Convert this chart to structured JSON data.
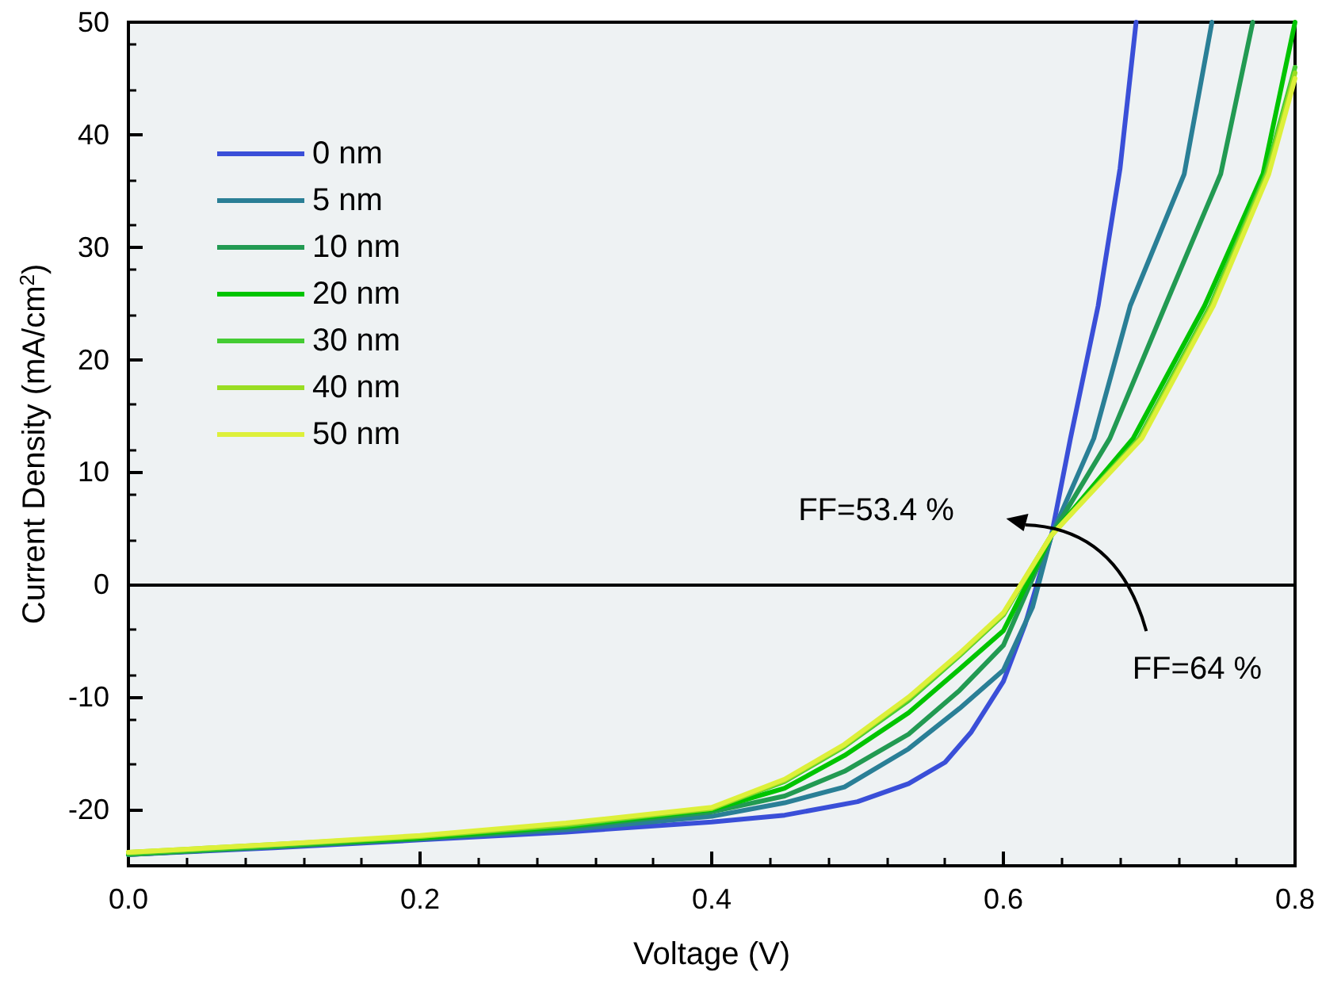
{
  "chart_data": {
    "type": "line",
    "xlabel": "Voltage (V)",
    "ylabel": "Current Density (mA/cm$^{2}$)",
    "xlim": [
      0,
      0.8
    ],
    "ylim": [
      -25,
      50
    ],
    "xticks": [
      {
        "value": 0,
        "label": "0.0"
      },
      {
        "value": 0.2,
        "label": "0.2"
      },
      {
        "value": 0.4,
        "label": "0.4"
      },
      {
        "value": 0.6,
        "label": "0.6"
      },
      {
        "value": 0.8,
        "label": "0.8"
      }
    ],
    "yticks": [
      -20,
      -10,
      0,
      10,
      20,
      30,
      40,
      50
    ],
    "grid": false,
    "legend": "top left",
    "marker": "none",
    "line_style": "solid",
    "ref_lines": [
      {
        "axis": "y",
        "value": 0,
        "color": "#000000"
      }
    ],
    "annotations": [
      "FF=53.4 %",
      "FF=64 %"
    ],
    "series": [
      {
        "name": "0 nm",
        "color": "#3a4fd8",
        "x": [
          0,
          0.1,
          0.2,
          0.3,
          0.4,
          0.45,
          0.5,
          0.535,
          0.56,
          0.578,
          0.6,
          0.615,
          0.623,
          0.633,
          0.646,
          0.665,
          0.68,
          0.691
        ],
        "values": [
          -24,
          -23.4,
          -22.7,
          -22,
          -21.1,
          -20.5,
          -19.3,
          -17.7,
          -15.8,
          -13.1,
          -8.6,
          -3.5,
          0,
          4.4,
          13,
          24.8,
          37,
          50
        ]
      },
      {
        "name": "5 nm",
        "color": "#2a7f96",
        "x": [
          0,
          0.1,
          0.2,
          0.3,
          0.4,
          0.45,
          0.491,
          0.535,
          0.57,
          0.6,
          0.62,
          0.633,
          0.662,
          0.687,
          0.724,
          0.743
        ],
        "values": [
          -24,
          -23.3,
          -22.6,
          -21.8,
          -20.6,
          -19.4,
          -18,
          -14.6,
          -11,
          -7.6,
          -2,
          4.4,
          13,
          24.8,
          36.5,
          50
        ]
      },
      {
        "name": "10 nm",
        "color": "#229a52",
        "x": [
          0,
          0.1,
          0.2,
          0.3,
          0.4,
          0.45,
          0.491,
          0.535,
          0.57,
          0.6,
          0.633,
          0.673,
          0.711,
          0.749,
          0.771
        ],
        "values": [
          -24,
          -23.3,
          -22.6,
          -21.6,
          -20.2,
          -18.8,
          -16.6,
          -13.3,
          -9.4,
          -5.4,
          4.4,
          13,
          24.8,
          36.5,
          50
        ]
      },
      {
        "name": "20 nm",
        "color": "#00c400",
        "x": [
          0,
          0.1,
          0.2,
          0.3,
          0.4,
          0.45,
          0.491,
          0.535,
          0.57,
          0.6,
          0.633,
          0.689,
          0.738,
          0.778,
          0.8
        ],
        "values": [
          -23.9,
          -23.2,
          -22.5,
          -21.5,
          -20,
          -18.1,
          -15.2,
          -11.4,
          -7.5,
          -4.1,
          4.4,
          13,
          24.8,
          36.5,
          50
        ]
      },
      {
        "name": "30 nm",
        "color": "#44cc33",
        "x": [
          0,
          0.1,
          0.2,
          0.3,
          0.4,
          0.45,
          0.491,
          0.535,
          0.57,
          0.6,
          0.633,
          0.693,
          0.742,
          0.78,
          0.8
        ],
        "values": [
          -23.9,
          -23.2,
          -22.4,
          -21.4,
          -19.9,
          -17.5,
          -14.4,
          -10.3,
          -6.3,
          -2.7,
          4.4,
          13,
          24.8,
          36.5,
          46
        ]
      },
      {
        "name": "40 nm",
        "color": "#99dd22",
        "x": [
          0,
          0.1,
          0.2,
          0.3,
          0.4,
          0.45,
          0.491,
          0.535,
          0.57,
          0.6,
          0.633,
          0.694,
          0.743,
          0.781,
          0.8
        ],
        "values": [
          -23.8,
          -23.1,
          -22.4,
          -21.3,
          -19.9,
          -17.4,
          -14.3,
          -10.1,
          -6.2,
          -2.6,
          4.4,
          13,
          24.8,
          36.5,
          45.5
        ]
      },
      {
        "name": "50 nm",
        "color": "#ddf03a",
        "x": [
          0,
          0.1,
          0.2,
          0.3,
          0.4,
          0.45,
          0.491,
          0.535,
          0.57,
          0.6,
          0.633,
          0.695,
          0.744,
          0.782,
          0.8
        ],
        "values": [
          -23.8,
          -23.1,
          -22.3,
          -21.2,
          -19.8,
          -17.3,
          -14.2,
          -10,
          -6.1,
          -2.5,
          4.4,
          13,
          24.8,
          36.5,
          45
        ]
      }
    ]
  }
}
